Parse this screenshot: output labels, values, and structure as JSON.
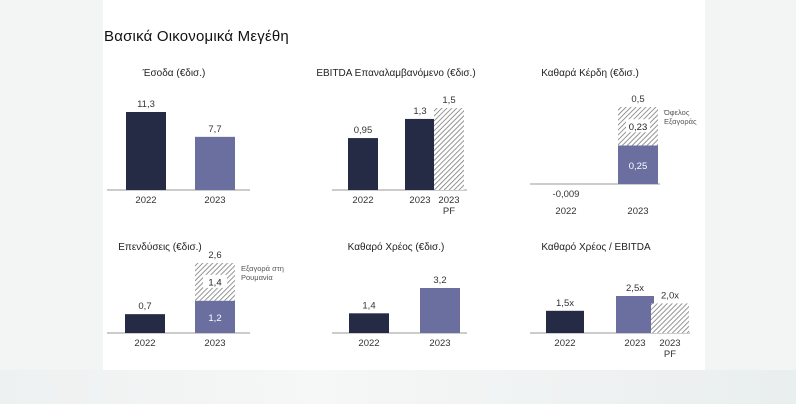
{
  "page": {
    "title": "Βασικά Οικονομικά Μεγέθη"
  },
  "colors": {
    "dark": "#262b45",
    "purple": "#6a6fa0",
    "axis": "#9a9a9a",
    "hatchBg": "#ffffff",
    "hatchLine": "#7a7a7a"
  },
  "chart_data": [
    {
      "type": "bar",
      "title": "Έσοδα (€δισ.)",
      "categories": [
        "2022",
        "2023"
      ],
      "series": [
        {
          "values": [
            11.3,
            7.7
          ]
        }
      ],
      "data_labels": [
        "11,3",
        "7,7"
      ],
      "bar_styles": [
        "dark",
        "purple"
      ],
      "ylim": [
        0,
        12
      ]
    },
    {
      "type": "bar",
      "title": "EBITDA Επαναλαμβανόμενο (€δισ.)",
      "categories": [
        "2022",
        "2023",
        "2023 PF"
      ],
      "series": [
        {
          "values": [
            0.95,
            1.3,
            1.5
          ]
        }
      ],
      "data_labels": [
        "0,95",
        "1,3",
        "1,5"
      ],
      "bar_styles": [
        "dark",
        "dark",
        "hatch"
      ],
      "ylim": [
        0,
        1.6
      ]
    },
    {
      "type": "bar",
      "title": "Καθαρά Κέρδη (€δισ.)",
      "categories": [
        "2022",
        "2023"
      ],
      "series": [
        {
          "values": [
            -0.009,
            0.25
          ]
        },
        {
          "values": [
            0,
            0.23
          ]
        }
      ],
      "totals": [
        -0.009,
        0.5
      ],
      "data_labels": [
        "-0,009",
        "0,25"
      ],
      "stack_labels": [
        "",
        "0,23"
      ],
      "total_labels": [
        "",
        "0,5"
      ],
      "annotation": "Όφελος Εξαγοράς",
      "ylim": [
        -0.05,
        0.55
      ]
    },
    {
      "type": "bar",
      "title": "Επενδύσεις (€δισ.)",
      "categories": [
        "2022",
        "2023"
      ],
      "series": [
        {
          "values": [
            0.7,
            1.2
          ]
        },
        {
          "values": [
            0,
            1.4
          ]
        }
      ],
      "totals": [
        0.7,
        2.6
      ],
      "data_labels": [
        "0,7",
        "1,2"
      ],
      "stack_labels": [
        "",
        "1,4"
      ],
      "total_labels": [
        "",
        "2,6"
      ],
      "annotation": "Εξαγορά στη Ρουμανία",
      "ylim": [
        0,
        2.8
      ]
    },
    {
      "type": "bar",
      "title": "Καθαρό Χρέος (€δισ.)",
      "categories": [
        "2022",
        "2023"
      ],
      "series": [
        {
          "values": [
            1.4,
            3.2
          ]
        }
      ],
      "data_labels": [
        "1,4",
        "3,2"
      ],
      "bar_styles": [
        "dark",
        "purple"
      ],
      "ylim": [
        0,
        3.5
      ]
    },
    {
      "type": "bar",
      "title": "Καθαρό Χρέος / EBITDA",
      "categories": [
        "2022",
        "2023",
        "2023 PF"
      ],
      "series": [
        {
          "values": [
            1.5,
            2.5,
            2.0
          ]
        }
      ],
      "data_labels": [
        "1,5x",
        "2,5x",
        "2,0x"
      ],
      "bar_styles": [
        "dark",
        "purple",
        "hatch"
      ],
      "ylim": [
        0,
        2.8
      ]
    }
  ]
}
